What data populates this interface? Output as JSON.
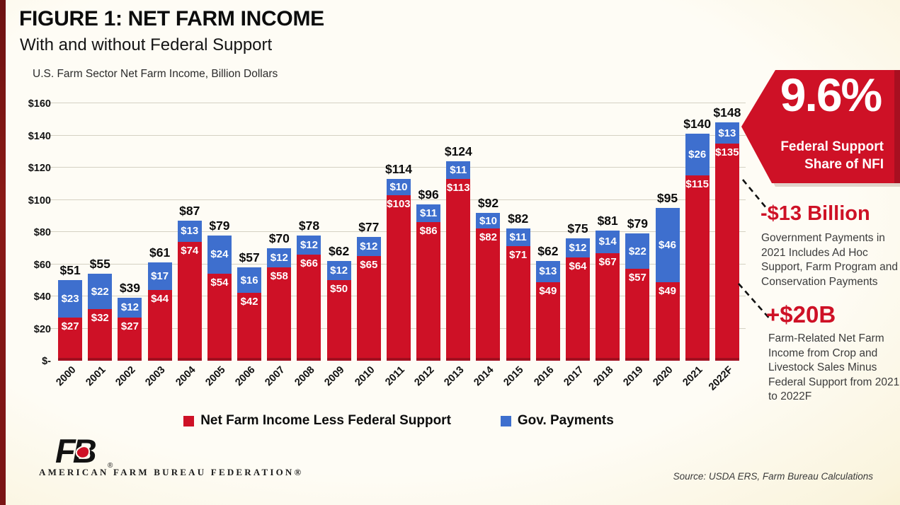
{
  "header": {
    "title": "FIGURE 1: NET FARM INCOME",
    "subtitle": "With and without Federal Support"
  },
  "chart_data": {
    "type": "bar",
    "stacked": true,
    "title": "U.S. Farm Sector Net Farm Income, Billion Dollars",
    "categories": [
      "2000",
      "2001",
      "2002",
      "2003",
      "2004",
      "2005",
      "2006",
      "2007",
      "2008",
      "2009",
      "2010",
      "2011",
      "2012",
      "2013",
      "2014",
      "2015",
      "2016",
      "2017",
      "2018",
      "2019",
      "2020",
      "2021",
      "2022F"
    ],
    "series": [
      {
        "name": "Net Farm Income Less Federal Support",
        "color": "#ce1126",
        "values": [
          27,
          32,
          27,
          44,
          74,
          54,
          42,
          58,
          66,
          50,
          65,
          103,
          86,
          113,
          82,
          71,
          49,
          64,
          67,
          57,
          49,
          115,
          135
        ]
      },
      {
        "name": "Gov. Payments",
        "color": "#3e6fce",
        "values": [
          23,
          22,
          12,
          17,
          13,
          24,
          16,
          12,
          12,
          12,
          12,
          10,
          11,
          11,
          10,
          11,
          13,
          12,
          14,
          22,
          46,
          26,
          13
        ]
      }
    ],
    "totals": [
      51,
      55,
      39,
      61,
      87,
      79,
      57,
      70,
      78,
      62,
      77,
      114,
      96,
      124,
      92,
      82,
      62,
      75,
      81,
      79,
      95,
      140,
      148
    ],
    "value_prefix": "$",
    "ytick_labels": [
      "$-",
      "$20",
      "$40",
      "$60",
      "$80",
      "$100",
      "$120",
      "$140",
      "$160"
    ],
    "ytick_step": 20,
    "ylim": [
      0,
      160
    ],
    "grid": true,
    "legend_position": "bottom"
  },
  "annotations": {
    "share_badge": {
      "value": "9.6%",
      "line1": "Federal Support",
      "line2": "Share of NFI",
      "color": "#ce1126"
    },
    "callout1": {
      "heading": "-$13 Billion",
      "body": "Government Payments in 2021 Includes Ad Hoc Support, Farm Program and Conservation Payments"
    },
    "callout2": {
      "heading": "+$20B",
      "body": "Farm-Related Net Farm Income from Crop and Livestock Sales Minus Federal Support from 2021 to 2022F"
    }
  },
  "footer": {
    "logo_mark": "FB",
    "logo_reg": "®",
    "logo_text": "AMERICAN FARM BUREAU FEDERATION®",
    "source": "Source: USDA ERS, Farm Bureau Calculations"
  }
}
